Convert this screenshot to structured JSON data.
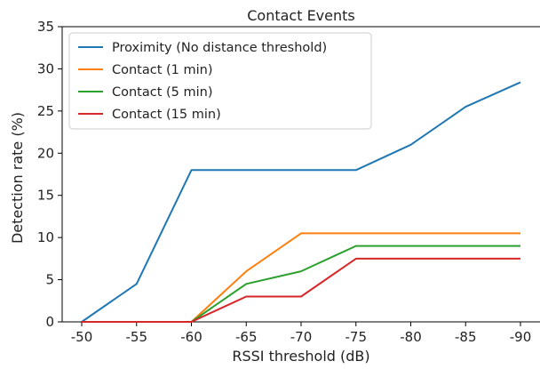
{
  "chart_data": {
    "type": "line",
    "title": "Contact Events",
    "xlabel": "RSSI threshold (dB)",
    "ylabel": "Detection rate (%)",
    "categories": [
      "-50",
      "-55",
      "-60",
      "-65",
      "-70",
      "-75",
      "-80",
      "-85",
      "-90"
    ],
    "ylim": [
      0,
      35
    ],
    "yticks": [
      0,
      5,
      10,
      15,
      20,
      25,
      30,
      35
    ],
    "grid": false,
    "legend_position": "top-left",
    "series": [
      {
        "name": "Proximity (No distance threshold)",
        "color": "#1f77b4",
        "values": [
          0,
          4.5,
          18,
          18,
          18,
          18,
          21,
          25.5,
          28.4
        ]
      },
      {
        "name": "Contact (1 min)",
        "color": "#ff7f0e",
        "values": [
          0,
          0,
          0,
          6,
          10.5,
          10.5,
          10.5,
          10.5,
          10.5
        ]
      },
      {
        "name": "Contact (5 min)",
        "color": "#2ca02c",
        "values": [
          0,
          0,
          0,
          4.5,
          6,
          9,
          9,
          9,
          9
        ]
      },
      {
        "name": "Contact (15 min)",
        "color": "#d62728",
        "values": [
          0,
          0,
          0,
          3,
          3,
          7.5,
          7.5,
          7.5,
          7.5
        ]
      }
    ]
  }
}
